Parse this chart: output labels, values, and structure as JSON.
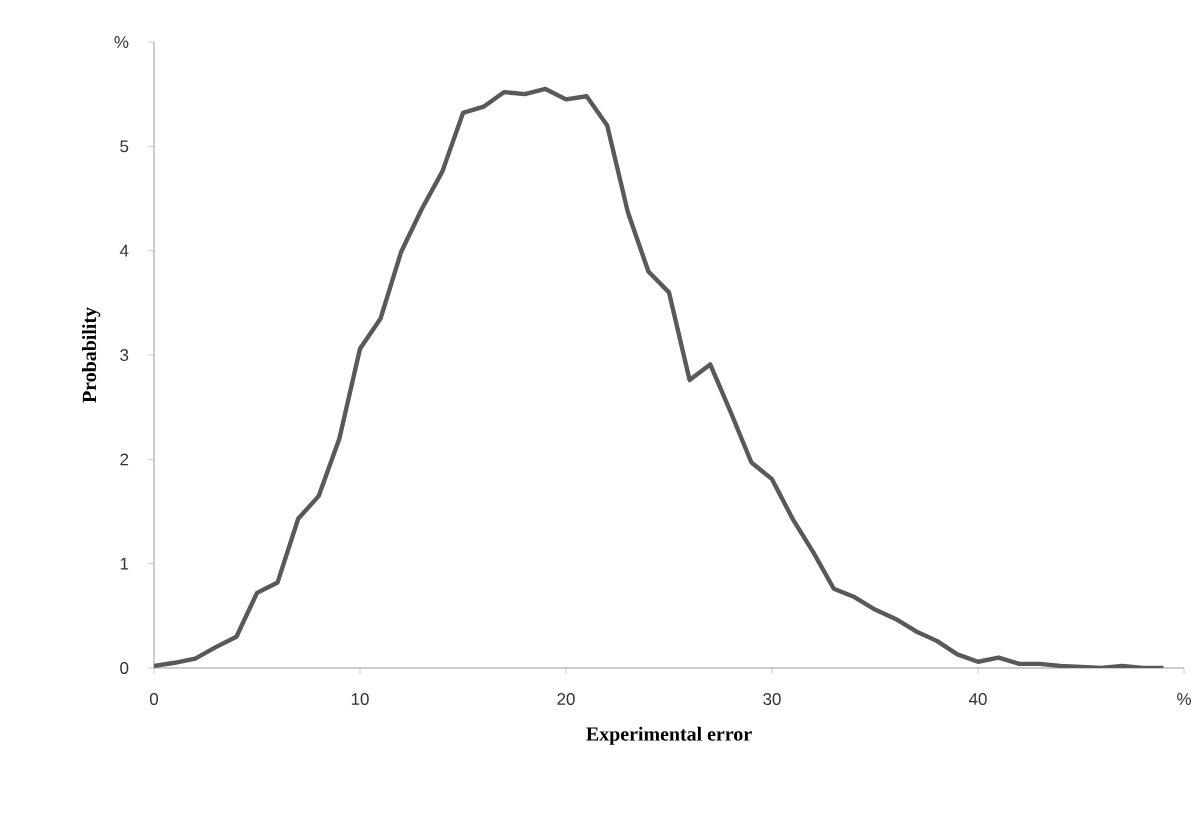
{
  "chart_data": {
    "type": "line",
    "xlabel": "Experimental error",
    "ylabel": "Probability",
    "x": [
      0,
      1,
      2,
      3,
      4,
      5,
      6,
      7,
      8,
      9,
      10,
      11,
      12,
      13,
      14,
      15,
      16,
      17,
      18,
      19,
      20,
      21,
      22,
      23,
      24,
      25,
      26,
      27,
      28,
      29,
      30,
      31,
      32,
      33,
      34,
      35,
      36,
      37,
      38,
      39,
      40,
      41,
      42,
      43,
      44,
      45,
      46,
      47,
      48,
      49
    ],
    "series": [
      {
        "color": "#595959",
        "values": [
          0.02,
          0.05,
          0.09,
          0.2,
          0.3,
          0.72,
          0.82,
          1.43,
          1.65,
          2.2,
          3.06,
          3.35,
          3.99,
          4.4,
          4.76,
          5.32,
          5.38,
          5.52,
          5.5,
          5.55,
          5.45,
          5.48,
          5.2,
          4.37,
          3.8,
          3.6,
          2.76,
          2.91,
          2.45,
          1.97,
          1.81,
          1.43,
          1.11,
          0.76,
          0.68,
          0.56,
          0.47,
          0.35,
          0.26,
          0.13,
          0.06,
          0.1,
          0.04,
          0.04,
          0.02,
          0.01,
          0.0,
          0.02,
          0.0,
          0.0
        ]
      }
    ],
    "xlim": [
      0,
      50
    ],
    "ylim": [
      0,
      6
    ],
    "xticks": [
      0,
      10,
      20,
      30,
      40,
      {
        "value": 50,
        "label": "%"
      }
    ],
    "yticks": [
      0,
      1,
      2,
      3,
      4,
      5,
      {
        "value": 6,
        "label": "%"
      }
    ],
    "marker": "none",
    "line_style": "solid"
  }
}
